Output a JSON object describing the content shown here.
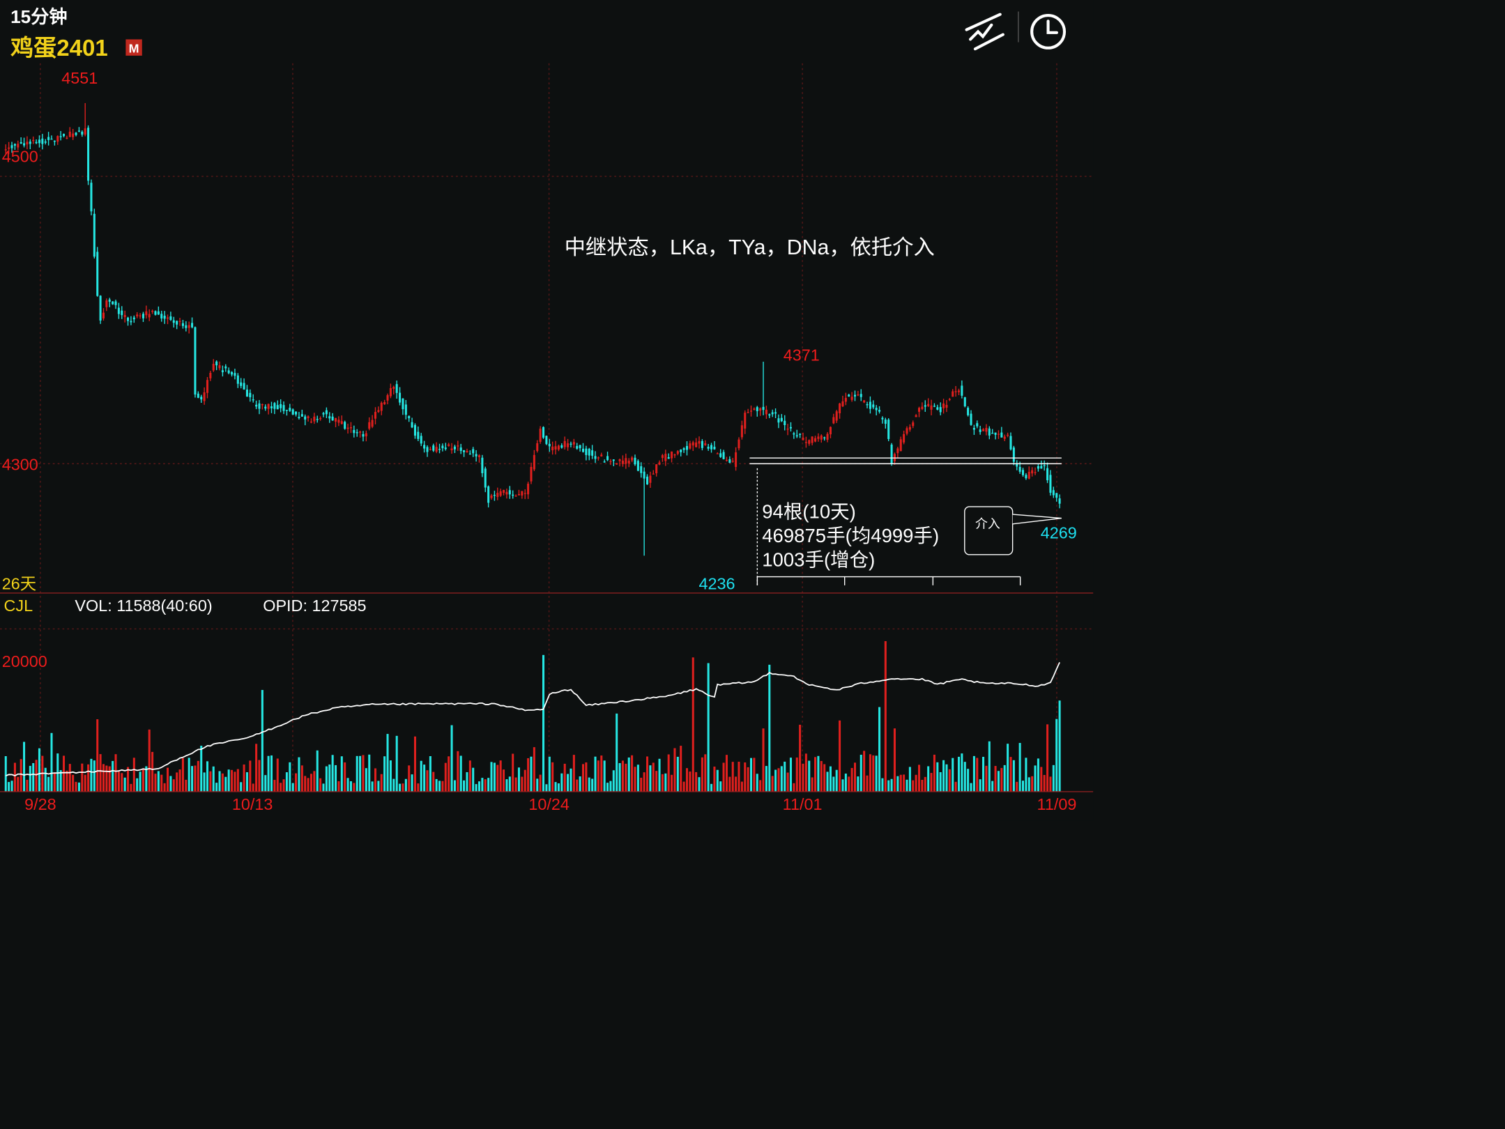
{
  "header": {
    "period": "15分钟",
    "symbol": "鸡蛋2401",
    "badge": "M",
    "draw_tool_icon": "trend-line-draw-icon",
    "clock_icon": "clock-icon"
  },
  "colors": {
    "background": "#0d1010",
    "up": "#e0201e",
    "down": "#25e7e3",
    "price_label": "#ee1c1c",
    "low_label": "#1ee0f0",
    "yellow": "#f2d21a",
    "grid": "#5a1818",
    "white": "#ffffff"
  },
  "price_panel": {
    "y_labels": [
      "4500",
      "4300"
    ],
    "high_label": "4551",
    "low_label": "4236",
    "mid_high_label": "4371",
    "last_low_label": "4269",
    "days_label": "26天",
    "annotation": "中继状态，LKa，TYa，DNa，依托介入",
    "stats": [
      "94根(10天)",
      "469875手(均4999手)",
      "1003手(增仓)"
    ],
    "callout": "介入"
  },
  "volume_panel": {
    "indicator": "CJL",
    "vol_text": "VOL: 11588(40:60)",
    "opid_text": "OPID: 127585",
    "y_label": "20000"
  },
  "x_labels": [
    "9/28",
    "10/13",
    "10/24",
    "11/01",
    "11/09"
  ],
  "chart_data": {
    "type": "candlestick",
    "title": "鸡蛋2401 15分钟",
    "period": "15分钟",
    "ylim": [
      4212,
      4576
    ],
    "y_ticks": [
      4300,
      4500
    ],
    "x_labels": [
      "9/28",
      "10/13",
      "10/24",
      "11/01",
      "11/09"
    ],
    "marked_prices": {
      "high": 4551,
      "low": 4236,
      "swing_high": 4371,
      "last_low": 4269
    },
    "support_lines": [
      4304,
      4300
    ],
    "volume_axis_tick": 20000,
    "candle_anchors": [
      [
        0,
        4520
      ],
      [
        20,
        4528
      ],
      [
        26,
        4532
      ],
      [
        27,
        4495
      ],
      [
        28,
        4474
      ],
      [
        30,
        4416
      ],
      [
        31,
        4400
      ],
      [
        33,
        4415
      ],
      [
        40,
        4400
      ],
      [
        47,
        4405
      ],
      [
        55,
        4400
      ],
      [
        61,
        4395
      ],
      [
        62,
        4350
      ],
      [
        64,
        4345
      ],
      [
        68,
        4370
      ],
      [
        75,
        4360
      ],
      [
        82,
        4340
      ],
      [
        90,
        4340
      ],
      [
        98,
        4330
      ],
      [
        104,
        4335
      ],
      [
        108,
        4330
      ],
      [
        117,
        4320
      ],
      [
        122,
        4338
      ],
      [
        127,
        4355
      ],
      [
        132,
        4330
      ],
      [
        137,
        4310
      ],
      [
        148,
        4312
      ],
      [
        155,
        4305
      ],
      [
        158,
        4275
      ],
      [
        162,
        4280
      ],
      [
        170,
        4279
      ],
      [
        175,
        4325
      ],
      [
        178,
        4310
      ],
      [
        185,
        4315
      ],
      [
        190,
        4308
      ],
      [
        200,
        4300
      ],
      [
        205,
        4303
      ],
      [
        210,
        4288
      ],
      [
        214,
        4303
      ],
      [
        220,
        4308
      ],
      [
        226,
        4315
      ],
      [
        231,
        4310
      ],
      [
        238,
        4300
      ],
      [
        242,
        4335
      ],
      [
        246,
        4338
      ],
      [
        252,
        4333
      ],
      [
        256,
        4324
      ],
      [
        262,
        4316
      ],
      [
        268,
        4318
      ],
      [
        274,
        4345
      ],
      [
        278,
        4348
      ],
      [
        284,
        4338
      ],
      [
        288,
        4330
      ],
      [
        290,
        4300
      ],
      [
        295,
        4325
      ],
      [
        300,
        4340
      ],
      [
        306,
        4338
      ],
      [
        312,
        4353
      ],
      [
        316,
        4327
      ],
      [
        322,
        4322
      ],
      [
        328,
        4318
      ],
      [
        330,
        4300
      ],
      [
        334,
        4292
      ],
      [
        338,
        4298
      ],
      [
        340,
        4298
      ],
      [
        342,
        4282
      ],
      [
        345,
        4274
      ]
    ],
    "volume_anchors": [
      [
        0,
        2000
      ],
      [
        50,
        2800
      ],
      [
        55,
        3800
      ],
      [
        66,
        5600
      ],
      [
        80,
        6700
      ],
      [
        98,
        9400
      ],
      [
        108,
        10300
      ],
      [
        120,
        10700
      ],
      [
        140,
        10800
      ],
      [
        160,
        10800
      ],
      [
        170,
        10000
      ],
      [
        176,
        10100
      ],
      [
        178,
        12000
      ],
      [
        185,
        12600
      ],
      [
        190,
        10600
      ],
      [
        200,
        11000
      ],
      [
        216,
        11700
      ],
      [
        226,
        12600
      ],
      [
        232,
        11600
      ],
      [
        233,
        13100
      ],
      [
        245,
        13500
      ],
      [
        250,
        14600
      ],
      [
        258,
        14200
      ],
      [
        262,
        13200
      ],
      [
        272,
        12500
      ],
      [
        280,
        13300
      ],
      [
        290,
        13900
      ],
      [
        300,
        13800
      ],
      [
        305,
        13200
      ],
      [
        313,
        13800
      ],
      [
        320,
        13300
      ],
      [
        330,
        13300
      ],
      [
        338,
        13000
      ],
      [
        342,
        13400
      ],
      [
        345,
        15900
      ]
    ]
  }
}
